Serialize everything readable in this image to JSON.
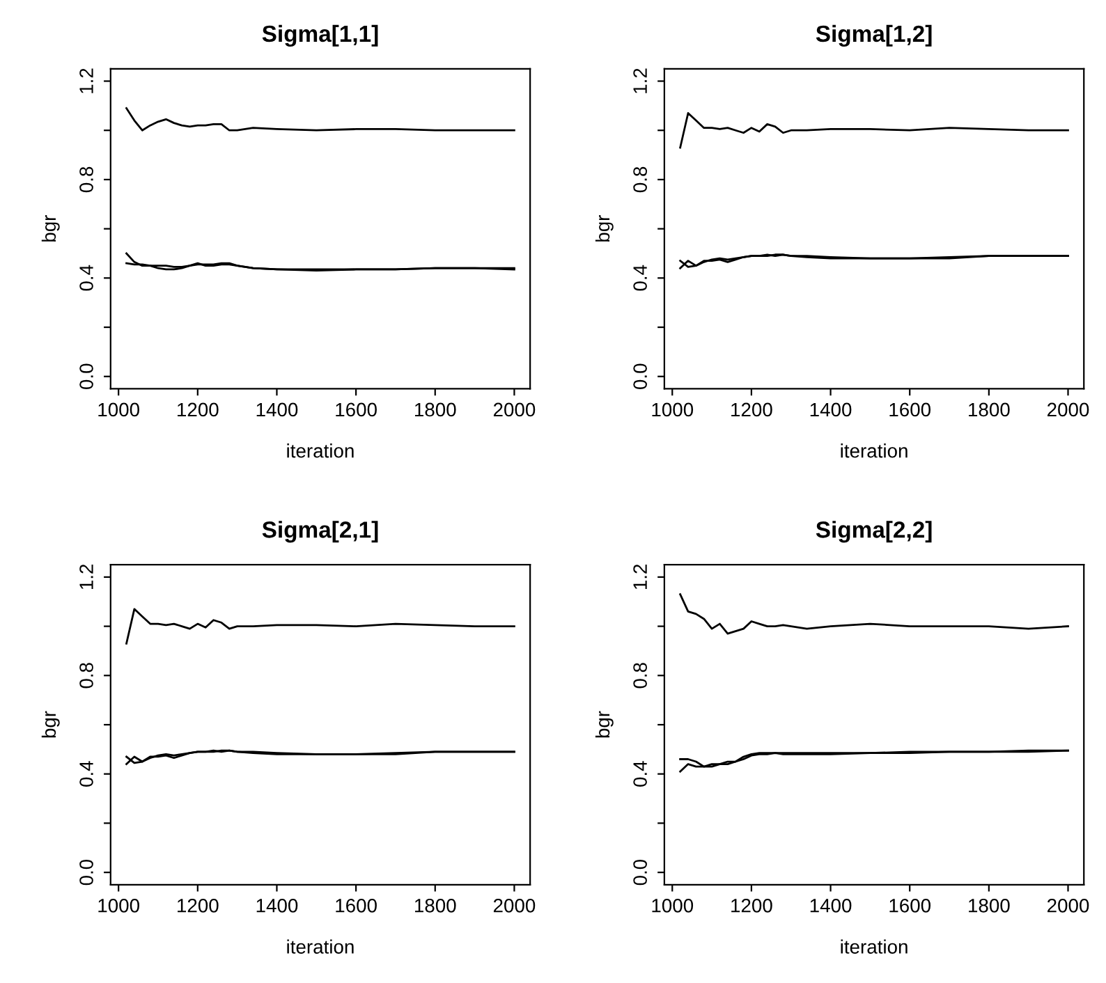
{
  "chart_data": [
    {
      "type": "line",
      "title": "Sigma[1,1]",
      "xlabel": "iteration",
      "ylabel": "bgr",
      "xlim": [
        980,
        2040
      ],
      "ylim": [
        -0.05,
        1.25
      ],
      "xticks": [
        1000,
        1200,
        1400,
        1600,
        1800,
        2000
      ],
      "yticks": [
        {
          "value": 0,
          "label": "0.0"
        },
        {
          "value": 0.2,
          "label": null
        },
        0.4,
        {
          "value": 0.6,
          "label": null
        },
        0.8,
        {
          "value": 1.0,
          "label": null
        },
        1.2
      ],
      "grid": false,
      "legend": false,
      "x": [
        1020,
        1040,
        1060,
        1080,
        1100,
        1120,
        1140,
        1160,
        1180,
        1200,
        1220,
        1240,
        1260,
        1280,
        1300,
        1340,
        1400,
        1500,
        1600,
        1700,
        1800,
        1900,
        2000
      ],
      "series": [
        {
          "color": "#000000",
          "values": [
            1.09,
            1.04,
            1.0,
            1.02,
            1.035,
            1.045,
            1.03,
            1.02,
            1.015,
            1.02,
            1.02,
            1.025,
            1.025,
            1.0,
            1.0,
            1.01,
            1.005,
            1.0,
            1.005,
            1.005,
            1.0,
            1.0,
            1.0
          ]
        },
        {
          "color": "#000000",
          "values": [
            0.5,
            0.465,
            0.45,
            0.45,
            0.44,
            0.435,
            0.435,
            0.44,
            0.45,
            0.46,
            0.45,
            0.45,
            0.455,
            0.455,
            0.45,
            0.44,
            0.435,
            0.43,
            0.435,
            0.435,
            0.44,
            0.44,
            0.44
          ]
        },
        {
          "color": "#000000",
          "values": [
            0.46,
            0.455,
            0.455,
            0.45,
            0.45,
            0.45,
            0.445,
            0.445,
            0.45,
            0.455,
            0.455,
            0.455,
            0.46,
            0.46,
            0.45,
            0.44,
            0.435,
            0.435,
            0.435,
            0.435,
            0.44,
            0.44,
            0.435
          ]
        }
      ]
    },
    {
      "type": "line",
      "title": "Sigma[1,2]",
      "xlabel": "iteration",
      "ylabel": "bgr",
      "xlim": [
        980,
        2040
      ],
      "ylim": [
        -0.05,
        1.25
      ],
      "xticks": [
        1000,
        1200,
        1400,
        1600,
        1800,
        2000
      ],
      "yticks": [
        {
          "value": 0,
          "label": "0.0"
        },
        {
          "value": 0.2,
          "label": null
        },
        0.4,
        {
          "value": 0.6,
          "label": null
        },
        0.8,
        {
          "value": 1.0,
          "label": null
        },
        1.2
      ],
      "grid": false,
      "legend": false,
      "x": [
        1020,
        1040,
        1060,
        1080,
        1100,
        1120,
        1140,
        1160,
        1180,
        1200,
        1220,
        1240,
        1260,
        1280,
        1300,
        1340,
        1400,
        1500,
        1600,
        1700,
        1800,
        1900,
        2000
      ],
      "series": [
        {
          "color": "#000000",
          "values": [
            0.93,
            1.07,
            1.04,
            1.01,
            1.01,
            1.005,
            1.01,
            1.0,
            0.99,
            1.01,
            0.995,
            1.025,
            1.015,
            0.99,
            1.0,
            1.0,
            1.005,
            1.005,
            1.0,
            1.01,
            1.005,
            1.0,
            1.0
          ]
        },
        {
          "color": "#000000",
          "values": [
            0.44,
            0.47,
            0.45,
            0.47,
            0.47,
            0.475,
            0.465,
            0.475,
            0.485,
            0.49,
            0.49,
            0.49,
            0.495,
            0.495,
            0.49,
            0.485,
            0.48,
            0.48,
            0.48,
            0.485,
            0.49,
            0.49,
            0.49
          ]
        },
        {
          "color": "#000000",
          "values": [
            0.47,
            0.445,
            0.45,
            0.465,
            0.475,
            0.48,
            0.475,
            0.48,
            0.485,
            0.49,
            0.49,
            0.495,
            0.49,
            0.495,
            0.49,
            0.49,
            0.485,
            0.48,
            0.48,
            0.48,
            0.49,
            0.49,
            0.49
          ]
        }
      ]
    },
    {
      "type": "line",
      "title": "Sigma[2,1]",
      "xlabel": "iteration",
      "ylabel": "bgr",
      "xlim": [
        980,
        2040
      ],
      "ylim": [
        -0.05,
        1.25
      ],
      "xticks": [
        1000,
        1200,
        1400,
        1600,
        1800,
        2000
      ],
      "yticks": [
        {
          "value": 0,
          "label": "0.0"
        },
        {
          "value": 0.2,
          "label": null
        },
        0.4,
        {
          "value": 0.6,
          "label": null
        },
        0.8,
        {
          "value": 1.0,
          "label": null
        },
        1.2
      ],
      "grid": false,
      "legend": false,
      "x": [
        1020,
        1040,
        1060,
        1080,
        1100,
        1120,
        1140,
        1160,
        1180,
        1200,
        1220,
        1240,
        1260,
        1280,
        1300,
        1340,
        1400,
        1500,
        1600,
        1700,
        1800,
        1900,
        2000
      ],
      "series": [
        {
          "color": "#000000",
          "values": [
            0.93,
            1.07,
            1.04,
            1.01,
            1.01,
            1.005,
            1.01,
            1.0,
            0.99,
            1.01,
            0.995,
            1.025,
            1.015,
            0.99,
            1.0,
            1.0,
            1.005,
            1.005,
            1.0,
            1.01,
            1.005,
            1.0,
            1.0
          ]
        },
        {
          "color": "#000000",
          "values": [
            0.44,
            0.47,
            0.45,
            0.47,
            0.47,
            0.475,
            0.465,
            0.475,
            0.485,
            0.49,
            0.49,
            0.49,
            0.495,
            0.495,
            0.49,
            0.485,
            0.48,
            0.48,
            0.48,
            0.485,
            0.49,
            0.49,
            0.49
          ]
        },
        {
          "color": "#000000",
          "values": [
            0.47,
            0.445,
            0.45,
            0.465,
            0.475,
            0.48,
            0.475,
            0.48,
            0.485,
            0.49,
            0.49,
            0.495,
            0.49,
            0.495,
            0.49,
            0.49,
            0.485,
            0.48,
            0.48,
            0.48,
            0.49,
            0.49,
            0.49
          ]
        }
      ]
    },
    {
      "type": "line",
      "title": "Sigma[2,2]",
      "xlabel": "iteration",
      "ylabel": "bgr",
      "xlim": [
        980,
        2040
      ],
      "ylim": [
        -0.05,
        1.25
      ],
      "xticks": [
        1000,
        1200,
        1400,
        1600,
        1800,
        2000
      ],
      "yticks": [
        {
          "value": 0,
          "label": "0.0"
        },
        {
          "value": 0.2,
          "label": null
        },
        0.4,
        {
          "value": 0.6,
          "label": null
        },
        0.8,
        {
          "value": 1.0,
          "label": null
        },
        1.2
      ],
      "grid": false,
      "legend": false,
      "x": [
        1020,
        1040,
        1060,
        1080,
        1100,
        1120,
        1140,
        1160,
        1180,
        1200,
        1220,
        1240,
        1260,
        1280,
        1300,
        1340,
        1400,
        1500,
        1600,
        1700,
        1800,
        1900,
        2000
      ],
      "series": [
        {
          "color": "#000000",
          "values": [
            1.13,
            1.06,
            1.05,
            1.03,
            0.99,
            1.01,
            0.97,
            0.98,
            0.99,
            1.02,
            1.01,
            1.0,
            1.0,
            1.005,
            1.0,
            0.99,
            1.0,
            1.01,
            1.0,
            1.0,
            1.0,
            0.99,
            1.0
          ]
        },
        {
          "color": "#000000",
          "values": [
            0.41,
            0.44,
            0.43,
            0.43,
            0.44,
            0.44,
            0.44,
            0.45,
            0.47,
            0.48,
            0.485,
            0.485,
            0.485,
            0.485,
            0.485,
            0.485,
            0.485,
            0.485,
            0.49,
            0.49,
            0.49,
            0.495,
            0.495
          ]
        },
        {
          "color": "#000000",
          "values": [
            0.46,
            0.46,
            0.45,
            0.43,
            0.43,
            0.44,
            0.45,
            0.45,
            0.46,
            0.475,
            0.48,
            0.48,
            0.485,
            0.48,
            0.48,
            0.48,
            0.48,
            0.485,
            0.485,
            0.49,
            0.49,
            0.49,
            0.495
          ]
        }
      ]
    }
  ]
}
